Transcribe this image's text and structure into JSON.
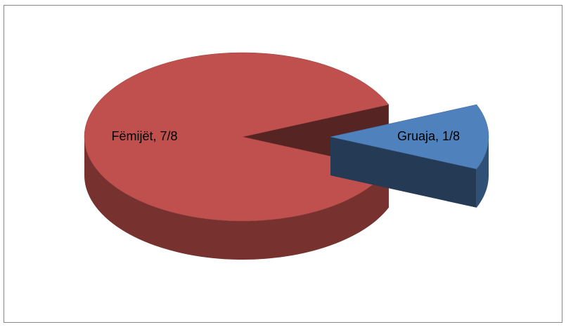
{
  "chart_data": {
    "type": "pie3d",
    "values": [
      0.875,
      0.125
    ],
    "value_labels": [
      "Fëmijët, 7/8",
      "Gruaja, 1/8"
    ],
    "colors": [
      "#c0504d",
      "#4f81bd"
    ],
    "exploded": [
      false,
      true
    ]
  }
}
